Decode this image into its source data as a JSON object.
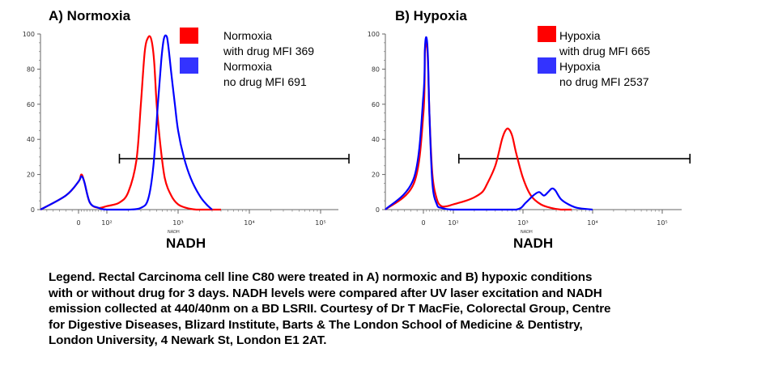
{
  "chart_data": [
    {
      "type": "line",
      "title": "A) Normoxia",
      "xlabel": "NADH",
      "axis_title_small": "NADH",
      "x_scale": "biexponential (log above 10^2)",
      "xlim": [
        -60,
        250000
      ],
      "ylim": [
        0,
        100
      ],
      "yticks": [
        "0",
        "20",
        "40",
        "60",
        "80",
        "100"
      ],
      "xticks": [
        "0",
        "10²",
        "10³",
        "10⁴",
        "10⁵"
      ],
      "gate": {
        "from": 150,
        "to": 250000,
        "y": 29
      },
      "legend": [
        {
          "color": "#ff0000",
          "lines": [
            "Normoxia",
            "with drug MFI 369"
          ]
        },
        {
          "color": "#3333ff",
          "lines": [
            "Normoxia",
            "no drug   MFI 691"
          ]
        }
      ],
      "series": [
        {
          "color": "#ff0000",
          "x": [
            -60,
            -20,
            0,
            10,
            20,
            40,
            70,
            100,
            150,
            200,
            260,
            300,
            340,
            380,
            420,
            460,
            500,
            560,
            650,
            800,
            1000,
            1300,
            1800,
            2500,
            4000
          ],
          "y": [
            0,
            8,
            16,
            20,
            16,
            4,
            1,
            2,
            4,
            10,
            28,
            60,
            90,
            98,
            97,
            85,
            60,
            38,
            18,
            8,
            3,
            1,
            0,
            0,
            0
          ]
        },
        {
          "color": "#0000ff",
          "x": [
            -60,
            -20,
            0,
            10,
            20,
            40,
            70,
            100,
            200,
            300,
            380,
            450,
            520,
            580,
            630,
            680,
            720,
            800,
            900,
            1000,
            1200,
            1500,
            2000,
            2500,
            3000
          ],
          "y": [
            0,
            8,
            16,
            19,
            16,
            4,
            1,
            0,
            0,
            1,
            6,
            25,
            60,
            85,
            97,
            99,
            95,
            78,
            60,
            45,
            30,
            18,
            8,
            3,
            0
          ]
        }
      ]
    },
    {
      "type": "line",
      "title": "B) Hypoxia",
      "xlabel": "NADH",
      "axis_title_small": "NADH",
      "x_scale": "biexponential (log above 10^2)",
      "xlim": [
        -60,
        250000
      ],
      "ylim": [
        0,
        100
      ],
      "yticks": [
        "0",
        "20",
        "40",
        "60",
        "80",
        "100"
      ],
      "xticks": [
        "0",
        "10²",
        "10³",
        "10⁴",
        "10⁵"
      ],
      "gate": {
        "from": 120,
        "to": 250000,
        "y": 29
      },
      "legend": [
        {
          "color": "#ff0000",
          "lines": [
            "Hypoxia",
            "with drug MFI  665"
          ]
        },
        {
          "color": "#3333ff",
          "lines": [
            "Hypoxia",
            "no drug   MFI 2537"
          ]
        }
      ],
      "series": [
        {
          "color": "#ff0000",
          "x": [
            -60,
            -15,
            0,
            5,
            10,
            15,
            20,
            30,
            45,
            60,
            80,
            100,
            150,
            200,
            260,
            300,
            400,
            500,
            560,
            620,
            700,
            800,
            1000,
            1300,
            1800,
            2500,
            3500,
            5000
          ],
          "y": [
            0,
            15,
            55,
            90,
            95,
            85,
            55,
            20,
            6,
            2,
            2,
            3,
            5,
            7,
            10,
            14,
            25,
            40,
            45,
            46,
            42,
            32,
            18,
            8,
            3,
            1,
            0,
            0
          ]
        },
        {
          "color": "#0000ff",
          "x": [
            -60,
            -15,
            0,
            5,
            10,
            15,
            20,
            30,
            45,
            60,
            100,
            300,
            800,
            1100,
            1400,
            1700,
            2000,
            2300,
            2600,
            2900,
            3500,
            4500,
            6000,
            10000
          ],
          "y": [
            0,
            18,
            65,
            92,
            98,
            88,
            55,
            15,
            3,
            1,
            0,
            0,
            0,
            4,
            8,
            10,
            8,
            10,
            12,
            11,
            6,
            3,
            1,
            0
          ]
        }
      ]
    }
  ],
  "caption": {
    "lines": [
      "Legend. Rectal Carcinoma cell line C80 were treated in A) normoxic and B) hypoxic conditions",
      "with or without drug for 3 days. NADH levels were compared after UV laser excitation and NADH",
      "emission collected at 440/40nm on a BD LSRII. Courtesy of Dr T MacFie, Colorectal Group, Centre",
      "for Digestive Diseases, Blizard Institute, Barts &  The London School of Medicine & Dentistry,",
      "London University, 4 Newark St, London E1 2AT."
    ]
  }
}
